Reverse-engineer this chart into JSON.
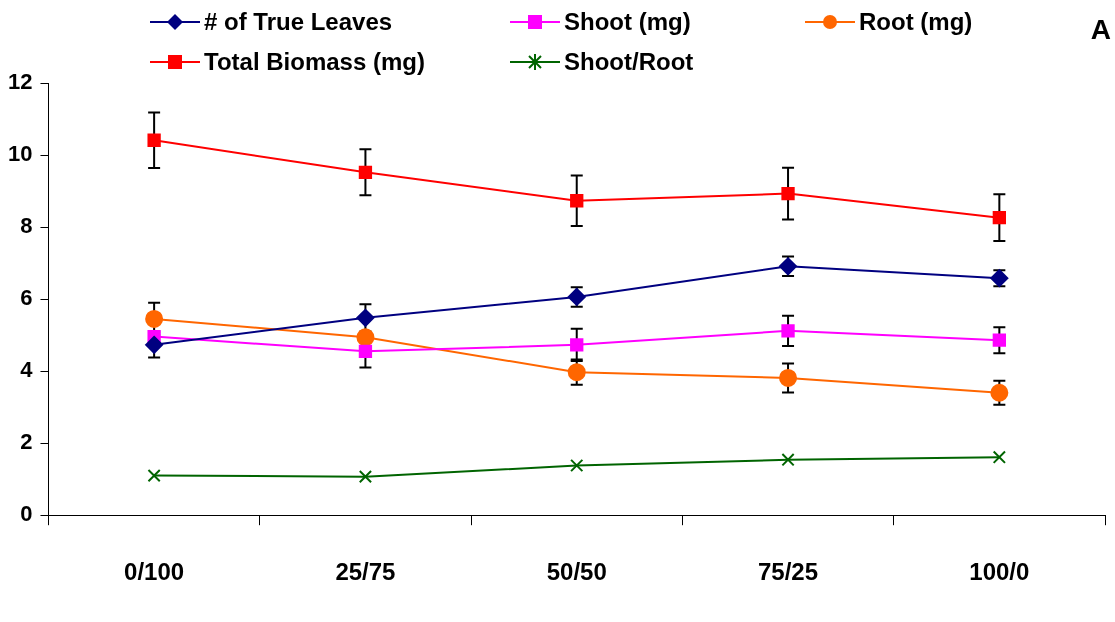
{
  "chart_data": {
    "type": "line",
    "categories": [
      "0/100",
      "25/75",
      "50/50",
      "75/25",
      "100/0"
    ],
    "ylim": [
      0,
      12
    ],
    "yticks": [
      0,
      2,
      4,
      6,
      8,
      10,
      12
    ],
    "grid": false,
    "legend": "top",
    "line_style": "solid",
    "annotations": [
      "A"
    ],
    "series": [
      {
        "name": "# of True Leaves",
        "color": "#000080",
        "marker": "diamond",
        "values": [
          4.73,
          5.48,
          6.06,
          6.91,
          6.58
        ],
        "errors": [
          0.35,
          0.38,
          0.27,
          0.27,
          0.22
        ]
      },
      {
        "name": "Shoot (mg)",
        "color": "#ff00ff",
        "marker": "square",
        "values": [
          4.96,
          4.55,
          4.73,
          5.12,
          4.86
        ],
        "errors": [
          null,
          0.45,
          0.45,
          0.42,
          0.36
        ]
      },
      {
        "name": "Root (mg)",
        "color": "#ff6600",
        "marker": "circle",
        "values": [
          5.45,
          4.94,
          3.97,
          3.81,
          3.4
        ],
        "errors": [
          0.45,
          null,
          0.35,
          0.4,
          0.33
        ]
      },
      {
        "name": "Total Biomass (mg)",
        "color": "#ff0000",
        "marker": "square",
        "values": [
          10.41,
          9.52,
          8.73,
          8.93,
          8.26
        ],
        "errors": [
          0.77,
          0.64,
          0.7,
          0.72,
          0.65
        ]
      },
      {
        "name": "Shoot/Root",
        "color": "#006400",
        "marker": "cross",
        "values": [
          1.1,
          1.07,
          1.38,
          1.54,
          1.61
        ]
      }
    ]
  }
}
